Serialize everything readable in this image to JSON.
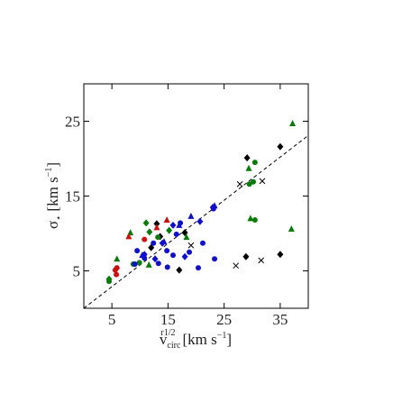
{
  "chart_data": {
    "type": "scatter",
    "x_label": {
      "symbol": "v",
      "subscript": "circ",
      "superscript": "r1/2",
      "unit": "[km s",
      "unit_exponent": "−1",
      "unit_end": "]"
    },
    "y_label": {
      "symbol": "σ",
      "subscript": "⋆",
      "unit": "[km s",
      "unit_exponent": "−1",
      "unit_end": "]"
    },
    "xlim": [
      0,
      40
    ],
    "ylim": [
      0,
      30
    ],
    "xticks": [
      5,
      15,
      25,
      35
    ],
    "yticks": [
      5,
      15,
      25
    ],
    "reference_line": {
      "x": [
        0,
        40
      ],
      "y": [
        0,
        23.1
      ],
      "color": "#000000",
      "dashed": true
    },
    "series": [
      {
        "color": "#000000",
        "marker": "diamond",
        "x": [
          29.1,
          35,
          13,
          13.6,
          17,
          28.9,
          35,
          18,
          12
        ],
        "y": [
          20.1,
          21.6,
          11.3,
          9.6,
          5.1,
          6.9,
          7.2,
          10.1,
          8.1
        ]
      },
      {
        "color": "#000000",
        "marker": "x",
        "x": [
          31.8,
          31.6,
          27.1,
          27.8,
          19.1
        ],
        "y": [
          17,
          6.4,
          5.7,
          16.6,
          8.4
        ]
      },
      {
        "color": "#0a7a0a",
        "marker": "triangle",
        "x": [
          37.2,
          29.4,
          29.7,
          37,
          5.9,
          8.3,
          18.3,
          11.6
        ],
        "y": [
          24.7,
          18.7,
          12,
          10.6,
          6.6,
          10.1,
          9.5,
          5.8
        ]
      },
      {
        "color": "#0a7a0a",
        "marker": "circle",
        "x": [
          30.5,
          30.5,
          29.5,
          30.2,
          4.5,
          8.8,
          9.9,
          13.2
        ],
        "y": [
          19.5,
          11.8,
          16.6,
          16.9,
          3.6,
          5.9,
          6.1,
          9.5
        ]
      },
      {
        "color": "#0a7a0a",
        "marker": "diamond",
        "x": [
          11.1,
          4.5,
          11.7,
          15.2
        ],
        "y": [
          11.4,
          3.9,
          10.2,
          10.4
        ]
      },
      {
        "color": "#cc1111",
        "marker": "triangle",
        "x": [
          8,
          14.8,
          13
        ],
        "y": [
          9.6,
          11.8,
          10.8
        ]
      },
      {
        "color": "#cc1111",
        "marker": "circle",
        "x": [
          5.6,
          5.8,
          5.9,
          10.8
        ],
        "y": [
          5.1,
          4.5,
          5.4,
          9.2
        ]
      },
      {
        "color": "#1010cc",
        "marker": "circle",
        "x": [
          23.1,
          21.2,
          9.1,
          10.8,
          13.3,
          14.9,
          15.9,
          18.8,
          20.4,
          23.3,
          12.4,
          14.8,
          16.5,
          9.5,
          17.2
        ],
        "y": [
          13.3,
          8.7,
          5.9,
          6.7,
          6,
          5.5,
          7.1,
          7.5,
          5.4,
          6.6,
          8.7,
          7.7,
          9.9,
          7.7,
          11.4
        ]
      },
      {
        "color": "#1010cc",
        "marker": "diamond",
        "x": [
          23,
          20.7,
          14,
          15.9,
          12.7,
          18,
          10.8
        ],
        "y": [
          13.5,
          11.6,
          8.7,
          11.1,
          6.6,
          6.9,
          7.2
        ]
      },
      {
        "color": "#1010cc",
        "marker": "triangle",
        "x": [
          23.3,
          19.1,
          17,
          14.3,
          10.4
        ],
        "y": [
          13.7,
          12.3,
          11.1,
          8.9,
          7.1
        ]
      }
    ]
  }
}
